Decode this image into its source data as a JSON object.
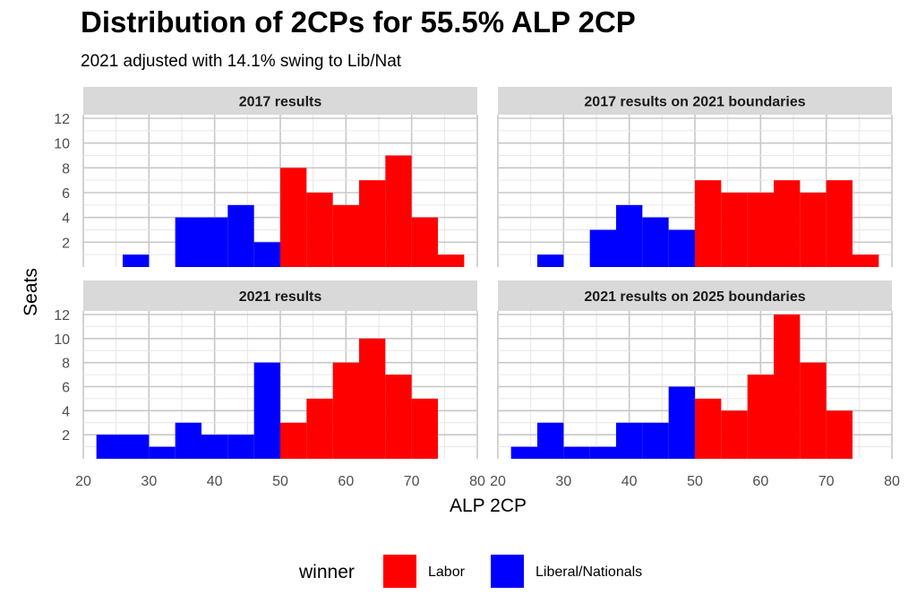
{
  "chart_data": {
    "type": "bar",
    "title": "Distribution of 2CPs for 55.5% ALP 2CP",
    "subtitle": "2021 adjusted with 14.1% swing to Lib/Nat",
    "xlabel": "ALP 2CP",
    "ylabel": "Seats",
    "xlim": [
      20,
      80
    ],
    "ylim": [
      0,
      12
    ],
    "x_ticks": [
      20,
      30,
      40,
      50,
      60,
      70,
      80
    ],
    "y_ticks": [
      2,
      4,
      6,
      8,
      10,
      12
    ],
    "bin_width": 4,
    "grid": true,
    "legend": {
      "title": "winner",
      "position": "bottom",
      "entries": [
        {
          "name": "Labor",
          "color": "#ff0000"
        },
        {
          "name": "Liberal/Nationals",
          "color": "#0000ff"
        }
      ]
    },
    "panels": [
      {
        "title": "2017 results",
        "bins": [
          {
            "x0": 26,
            "x1": 30,
            "count": 1,
            "winner": "Liberal/Nationals"
          },
          {
            "x0": 34,
            "x1": 38,
            "count": 4,
            "winner": "Liberal/Nationals"
          },
          {
            "x0": 38,
            "x1": 42,
            "count": 4,
            "winner": "Liberal/Nationals"
          },
          {
            "x0": 42,
            "x1": 46,
            "count": 5,
            "winner": "Liberal/Nationals"
          },
          {
            "x0": 46,
            "x1": 50,
            "count": 2,
            "winner": "Liberal/Nationals"
          },
          {
            "x0": 50,
            "x1": 54,
            "count": 8,
            "winner": "Labor"
          },
          {
            "x0": 54,
            "x1": 58,
            "count": 6,
            "winner": "Labor"
          },
          {
            "x0": 58,
            "x1": 62,
            "count": 5,
            "winner": "Labor"
          },
          {
            "x0": 62,
            "x1": 66,
            "count": 7,
            "winner": "Labor"
          },
          {
            "x0": 66,
            "x1": 70,
            "count": 9,
            "winner": "Labor"
          },
          {
            "x0": 70,
            "x1": 74,
            "count": 4,
            "winner": "Labor"
          },
          {
            "x0": 74,
            "x1": 78,
            "count": 1,
            "winner": "Labor"
          }
        ]
      },
      {
        "title": "2017 results on 2021 boundaries",
        "bins": [
          {
            "x0": 26,
            "x1": 30,
            "count": 1,
            "winner": "Liberal/Nationals"
          },
          {
            "x0": 34,
            "x1": 38,
            "count": 3,
            "winner": "Liberal/Nationals"
          },
          {
            "x0": 38,
            "x1": 42,
            "count": 5,
            "winner": "Liberal/Nationals"
          },
          {
            "x0": 42,
            "x1": 46,
            "count": 4,
            "winner": "Liberal/Nationals"
          },
          {
            "x0": 46,
            "x1": 50,
            "count": 3,
            "winner": "Liberal/Nationals"
          },
          {
            "x0": 50,
            "x1": 54,
            "count": 7,
            "winner": "Labor"
          },
          {
            "x0": 54,
            "x1": 58,
            "count": 6,
            "winner": "Labor"
          },
          {
            "x0": 58,
            "x1": 62,
            "count": 6,
            "winner": "Labor"
          },
          {
            "x0": 62,
            "x1": 66,
            "count": 7,
            "winner": "Labor"
          },
          {
            "x0": 66,
            "x1": 70,
            "count": 6,
            "winner": "Labor"
          },
          {
            "x0": 70,
            "x1": 74,
            "count": 7,
            "winner": "Labor"
          },
          {
            "x0": 74,
            "x1": 78,
            "count": 1,
            "winner": "Labor"
          }
        ]
      },
      {
        "title": "2021 results",
        "bins": [
          {
            "x0": 22,
            "x1": 26,
            "count": 2,
            "winner": "Liberal/Nationals"
          },
          {
            "x0": 26,
            "x1": 30,
            "count": 2,
            "winner": "Liberal/Nationals"
          },
          {
            "x0": 30,
            "x1": 34,
            "count": 1,
            "winner": "Liberal/Nationals"
          },
          {
            "x0": 34,
            "x1": 38,
            "count": 3,
            "winner": "Liberal/Nationals"
          },
          {
            "x0": 38,
            "x1": 42,
            "count": 2,
            "winner": "Liberal/Nationals"
          },
          {
            "x0": 42,
            "x1": 46,
            "count": 2,
            "winner": "Liberal/Nationals"
          },
          {
            "x0": 46,
            "x1": 50,
            "count": 8,
            "winner": "Liberal/Nationals"
          },
          {
            "x0": 50,
            "x1": 54,
            "count": 3,
            "winner": "Labor"
          },
          {
            "x0": 54,
            "x1": 58,
            "count": 5,
            "winner": "Labor"
          },
          {
            "x0": 58,
            "x1": 62,
            "count": 8,
            "winner": "Labor"
          },
          {
            "x0": 62,
            "x1": 66,
            "count": 10,
            "winner": "Labor"
          },
          {
            "x0": 66,
            "x1": 70,
            "count": 7,
            "winner": "Labor"
          },
          {
            "x0": 70,
            "x1": 74,
            "count": 5,
            "winner": "Labor"
          }
        ]
      },
      {
        "title": "2021 results on 2025 boundaries",
        "bins": [
          {
            "x0": 22,
            "x1": 26,
            "count": 1,
            "winner": "Liberal/Nationals"
          },
          {
            "x0": 26,
            "x1": 30,
            "count": 3,
            "winner": "Liberal/Nationals"
          },
          {
            "x0": 30,
            "x1": 34,
            "count": 1,
            "winner": "Liberal/Nationals"
          },
          {
            "x0": 34,
            "x1": 38,
            "count": 1,
            "winner": "Liberal/Nationals"
          },
          {
            "x0": 38,
            "x1": 42,
            "count": 3,
            "winner": "Liberal/Nationals"
          },
          {
            "x0": 42,
            "x1": 46,
            "count": 3,
            "winner": "Liberal/Nationals"
          },
          {
            "x0": 46,
            "x1": 50,
            "count": 6,
            "winner": "Liberal/Nationals"
          },
          {
            "x0": 50,
            "x1": 54,
            "count": 5,
            "winner": "Labor"
          },
          {
            "x0": 54,
            "x1": 58,
            "count": 4,
            "winner": "Labor"
          },
          {
            "x0": 58,
            "x1": 62,
            "count": 7,
            "winner": "Labor"
          },
          {
            "x0": 62,
            "x1": 66,
            "count": 12,
            "winner": "Labor"
          },
          {
            "x0": 66,
            "x1": 70,
            "count": 8,
            "winner": "Labor"
          },
          {
            "x0": 70,
            "x1": 74,
            "count": 4,
            "winner": "Labor"
          }
        ]
      }
    ]
  }
}
